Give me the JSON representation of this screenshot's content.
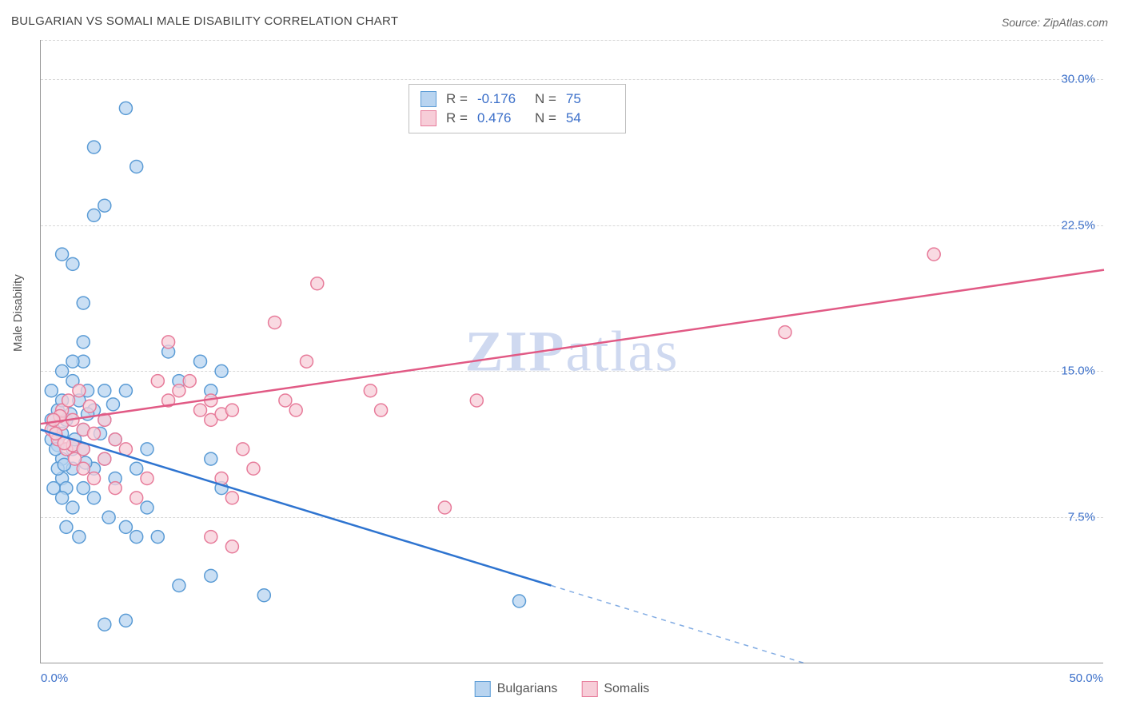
{
  "title": "BULGARIAN VS SOMALI MALE DISABILITY CORRELATION CHART",
  "source": "Source: ZipAtlas.com",
  "yaxis_label": "Male Disability",
  "watermark": {
    "bold": "ZIP",
    "rest": "atlas"
  },
  "chart": {
    "type": "scatter",
    "background_color": "#ffffff",
    "grid_color": "#d8d8d8",
    "axis_color": "#999999",
    "xlim": [
      0,
      50
    ],
    "ylim": [
      0,
      32
    ],
    "y_gridlines": [
      7.5,
      15.0,
      22.5,
      30.0
    ],
    "ytick_labels": [
      "7.5%",
      "15.0%",
      "22.5%",
      "30.0%"
    ],
    "xtick_left": "0.0%",
    "xtick_right": "50.0%",
    "tick_label_color": "#3b6fc9",
    "tick_label_fontsize": 15
  },
  "series": [
    {
      "name": "Bulgarians",
      "marker_fill": "#b8d4f0",
      "marker_stroke": "#5a9bd5",
      "marker_radius": 8,
      "line_color": "#2e74d0",
      "line_width": 2.5,
      "trend": {
        "x1": 0,
        "y1": 12.0,
        "x2": 24,
        "y2": 4.0,
        "x2_ext": 50,
        "y2_ext": -4.7
      },
      "stats": {
        "R": "-0.176",
        "N": "75"
      },
      "points": [
        [
          0.5,
          11.5
        ],
        [
          0.6,
          12.0
        ],
        [
          0.8,
          11.2
        ],
        [
          1.0,
          10.5
        ],
        [
          1.0,
          11.8
        ],
        [
          1.2,
          12.5
        ],
        [
          1.0,
          9.5
        ],
        [
          1.2,
          9.0
        ],
        [
          1.5,
          10.0
        ],
        [
          1.5,
          11.0
        ],
        [
          0.8,
          13.0
        ],
        [
          1.0,
          13.5
        ],
        [
          1.5,
          14.5
        ],
        [
          2.0,
          15.5
        ],
        [
          2.2,
          14.0
        ],
        [
          2.5,
          13.0
        ],
        [
          2.0,
          11.0
        ],
        [
          2.5,
          10.0
        ],
        [
          2.0,
          9.0
        ],
        [
          2.5,
          8.5
        ],
        [
          1.5,
          8.0
        ],
        [
          1.0,
          8.5
        ],
        [
          2.0,
          12.0
        ],
        [
          3.0,
          12.5
        ],
        [
          3.0,
          10.5
        ],
        [
          3.5,
          9.5
        ],
        [
          3.5,
          11.5
        ],
        [
          4.0,
          14.0
        ],
        [
          4.5,
          10.0
        ],
        [
          5.0,
          8.0
        ],
        [
          4.5,
          6.5
        ],
        [
          5.5,
          6.5
        ],
        [
          4.0,
          7.0
        ],
        [
          6.0,
          16.0
        ],
        [
          6.5,
          14.5
        ],
        [
          7.5,
          15.5
        ],
        [
          8.0,
          14.0
        ],
        [
          8.5,
          15.0
        ],
        [
          8.0,
          10.5
        ],
        [
          8.5,
          9.0
        ],
        [
          6.5,
          4.0
        ],
        [
          8.0,
          4.5
        ],
        [
          10.5,
          3.5
        ],
        [
          3.0,
          2.0
        ],
        [
          4.0,
          2.2
        ],
        [
          1.5,
          20.5
        ],
        [
          1.0,
          21.0
        ],
        [
          2.0,
          18.5
        ],
        [
          2.5,
          23.0
        ],
        [
          3.0,
          23.5
        ],
        [
          2.5,
          26.5
        ],
        [
          4.0,
          28.5
        ],
        [
          4.5,
          25.5
        ],
        [
          2.0,
          16.5
        ],
        [
          22.5,
          3.2
        ],
        [
          0.5,
          14.0
        ],
        [
          1.2,
          7.0
        ],
        [
          1.8,
          6.5
        ],
        [
          3.2,
          7.5
        ],
        [
          5.0,
          11.0
        ],
        [
          1.0,
          15.0
        ],
        [
          0.8,
          10.0
        ],
        [
          0.6,
          9.0
        ],
        [
          1.4,
          12.8
        ],
        [
          0.5,
          12.5
        ],
        [
          1.8,
          13.5
        ],
        [
          2.2,
          12.8
        ],
        [
          3.0,
          14.0
        ],
        [
          1.5,
          15.5
        ],
        [
          0.7,
          11.0
        ],
        [
          1.1,
          10.2
        ],
        [
          1.6,
          11.5
        ],
        [
          2.1,
          10.3
        ],
        [
          2.8,
          11.8
        ],
        [
          3.4,
          13.3
        ]
      ]
    },
    {
      "name": "Somalis",
      "marker_fill": "#f7cdd8",
      "marker_stroke": "#e77b9a",
      "marker_radius": 8,
      "line_color": "#e15a85",
      "line_width": 2.5,
      "trend": {
        "x1": 0,
        "y1": 12.3,
        "x2": 50,
        "y2": 20.2
      },
      "stats": {
        "R": "0.476",
        "N": "54"
      },
      "points": [
        [
          0.5,
          12.0
        ],
        [
          0.8,
          11.5
        ],
        [
          1.0,
          12.3
        ],
        [
          1.2,
          11.0
        ],
        [
          1.5,
          12.5
        ],
        [
          1.0,
          13.0
        ],
        [
          1.5,
          11.2
        ],
        [
          2.0,
          12.0
        ],
        [
          2.0,
          11.0
        ],
        [
          2.5,
          11.8
        ],
        [
          2.0,
          10.0
        ],
        [
          2.5,
          9.5
        ],
        [
          3.0,
          10.5
        ],
        [
          3.5,
          11.5
        ],
        [
          4.0,
          11.0
        ],
        [
          3.0,
          12.5
        ],
        [
          3.5,
          9.0
        ],
        [
          4.5,
          8.5
        ],
        [
          5.0,
          9.5
        ],
        [
          5.5,
          14.5
        ],
        [
          6.0,
          13.5
        ],
        [
          6.5,
          14.0
        ],
        [
          6.0,
          16.5
        ],
        [
          7.0,
          14.5
        ],
        [
          7.5,
          13.0
        ],
        [
          8.0,
          12.5
        ],
        [
          8.0,
          13.5
        ],
        [
          8.5,
          12.8
        ],
        [
          9.0,
          13.0
        ],
        [
          9.5,
          11.0
        ],
        [
          8.5,
          9.5
        ],
        [
          9.0,
          8.5
        ],
        [
          10.0,
          10.0
        ],
        [
          8.0,
          6.5
        ],
        [
          9.0,
          6.0
        ],
        [
          11.0,
          17.5
        ],
        [
          11.5,
          13.5
        ],
        [
          12.5,
          15.5
        ],
        [
          13.0,
          19.5
        ],
        [
          12.0,
          13.0
        ],
        [
          15.5,
          14.0
        ],
        [
          16.0,
          13.0
        ],
        [
          19.0,
          8.0
        ],
        [
          20.5,
          13.5
        ],
        [
          35.0,
          17.0
        ],
        [
          42.0,
          21.0
        ],
        [
          0.7,
          11.8
        ],
        [
          1.3,
          13.5
        ],
        [
          0.9,
          12.7
        ],
        [
          2.3,
          13.2
        ],
        [
          1.8,
          14.0
        ],
        [
          1.1,
          11.3
        ],
        [
          1.6,
          10.5
        ],
        [
          0.6,
          12.5
        ]
      ]
    }
  ],
  "stat_legend_labels": {
    "R": "R =",
    "N": "N ="
  },
  "bottom_legend": [
    {
      "label": "Bulgarians",
      "fill": "#b8d4f0",
      "stroke": "#5a9bd5"
    },
    {
      "label": "Somalis",
      "fill": "#f7cdd8",
      "stroke": "#e77b9a"
    }
  ]
}
